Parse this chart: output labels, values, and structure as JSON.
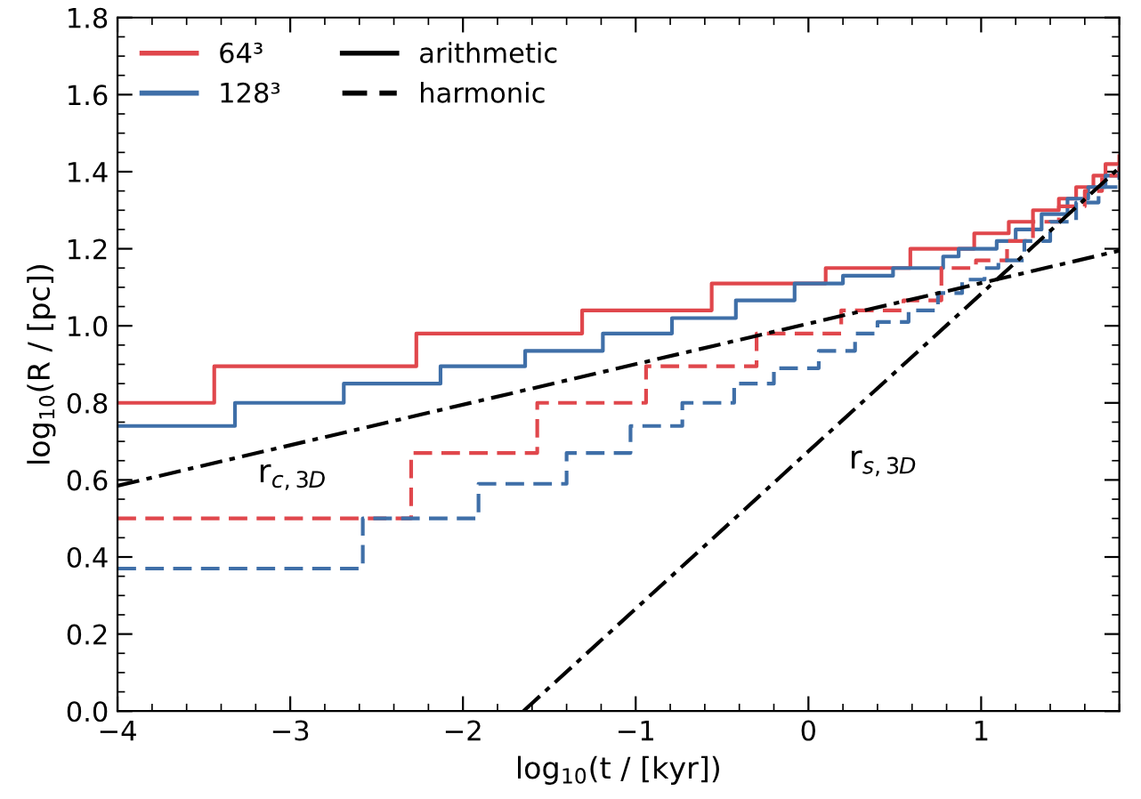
{
  "chart_data": {
    "type": "step",
    "xlabel": "log$_{10}$(t / [kyr])",
    "ylabel": "log$_{10}$(R / [pc])",
    "xlim": [
      -4,
      1.8
    ],
    "ylim": [
      0,
      1.8
    ],
    "xticks": [
      {
        "value": -4,
        "label": "−4"
      },
      {
        "value": -3,
        "label": "−3"
      },
      {
        "value": -2,
        "label": "−2"
      },
      {
        "value": -1,
        "label": "−1"
      },
      0,
      1
    ],
    "yticks": [
      {
        "value": 0,
        "label": "0.0"
      },
      {
        "value": 0.2,
        "label": "0.2"
      },
      {
        "value": 0.4,
        "label": "0.4"
      },
      {
        "value": 0.6,
        "label": "0.6"
      },
      {
        "value": 0.8,
        "label": "0.8"
      },
      {
        "value": 1.0,
        "label": "1.0"
      },
      {
        "value": 1.2,
        "label": "1.2"
      },
      {
        "value": 1.4,
        "label": "1.4"
      },
      {
        "value": 1.6,
        "label": "1.6"
      },
      {
        "value": 1.8,
        "label": "1.8"
      }
    ],
    "grid": false,
    "legend": "top left",
    "series": [
      {
        "name": "64³",
        "color": "#e0474c",
        "line_style": "solid",
        "x": [
          -4,
          -3.44,
          -2.27,
          -1.31,
          -0.56,
          0.1,
          0.59,
          0.96,
          1.16,
          1.3,
          1.45,
          1.55,
          1.65,
          1.72,
          1.8
        ],
        "values": [
          0.8,
          0.895,
          0.98,
          1.04,
          1.11,
          1.15,
          1.2,
          1.24,
          1.27,
          1.3,
          1.33,
          1.36,
          1.39,
          1.42,
          1.44
        ]
      },
      {
        "name": "128³",
        "color": "#3f6fa8",
        "line_style": "solid",
        "x": [
          -4,
          -3.32,
          -2.69,
          -2.13,
          -1.64,
          -1.19,
          -0.79,
          -0.42,
          -0.08,
          0.2,
          0.49,
          0.78,
          0.87,
          1.09,
          1.2,
          1.35,
          1.5,
          1.62,
          1.72,
          1.8
        ],
        "values": [
          0.74,
          0.8,
          0.85,
          0.895,
          0.935,
          0.98,
          1.02,
          1.066,
          1.11,
          1.13,
          1.15,
          1.18,
          1.2,
          1.22,
          1.25,
          1.29,
          1.33,
          1.36,
          1.39,
          1.41
        ]
      },
      {
        "color": "#e0474c",
        "line_style": "dashed",
        "x": [
          -4,
          -2.3,
          -1.57,
          -0.94,
          -0.3,
          0.19,
          0.55,
          0.77,
          0.97,
          1.15,
          1.3,
          1.45,
          1.6,
          1.7,
          1.8
        ],
        "values": [
          0.5,
          0.67,
          0.8,
          0.895,
          0.98,
          1.04,
          1.066,
          1.15,
          1.17,
          1.22,
          1.27,
          1.31,
          1.35,
          1.39,
          1.43
        ]
      },
      {
        "color": "#3f6fa8",
        "line_style": "dashed",
        "x": [
          -4,
          -2.58,
          -1.91,
          -1.4,
          -1.03,
          -0.73,
          -0.43,
          -0.2,
          0.06,
          0.27,
          0.4,
          0.58,
          0.75,
          0.89,
          1.02,
          1.1,
          1.25,
          1.4,
          1.55,
          1.68,
          1.8
        ],
        "values": [
          0.37,
          0.5,
          0.59,
          0.67,
          0.74,
          0.8,
          0.85,
          0.89,
          0.935,
          0.98,
          1.01,
          1.04,
          1.085,
          1.12,
          1.15,
          1.17,
          1.22,
          1.27,
          1.32,
          1.36,
          1.4
        ]
      },
      {
        "type": "line",
        "color": "#000000",
        "line_style": "dashdot",
        "x": [
          -4,
          1.8
        ],
        "values": [
          0.585,
          1.195
        ]
      },
      {
        "type": "line",
        "color": "#000000",
        "line_style": "dashdot",
        "x": [
          -1.65,
          1.8
        ],
        "values": [
          0.0,
          1.41
        ]
      }
    ],
    "annotations": [
      "arithmetic",
      "harmonic",
      "r$_{c,3D}$",
      "r$_{s,3D}$"
    ]
  }
}
